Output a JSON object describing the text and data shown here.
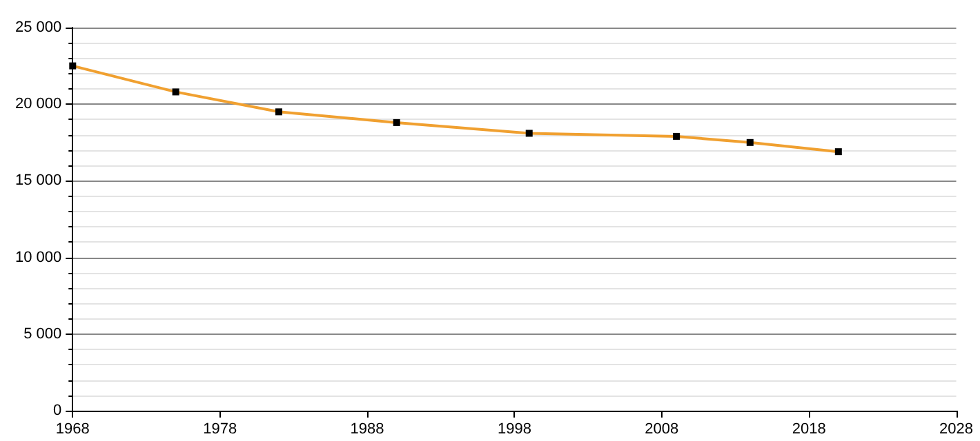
{
  "chart_data": {
    "type": "line",
    "x": [
      1968,
      1975,
      1982,
      1990,
      1999,
      2009,
      2014,
      2020
    ],
    "series": [
      {
        "color": "#f0a030",
        "values": [
          22500,
          20800,
          19500,
          18800,
          18100,
          17900,
          17500,
          16900
        ]
      }
    ],
    "xlim": [
      1968,
      2028
    ],
    "xticks": [
      1968,
      1978,
      1988,
      1998,
      2008,
      2018,
      2028
    ],
    "ylim": [
      0,
      25000
    ],
    "yticks": [
      0,
      {
        "value": 5000,
        "label": "5 000"
      },
      {
        "value": 10000,
        "label": "10 000"
      },
      {
        "value": 15000,
        "label": "15 000"
      },
      {
        "value": 20000,
        "label": "20 000"
      },
      {
        "value": 25000,
        "label": "25 000"
      }
    ],
    "grid": "y",
    "marker": "square",
    "line_style": "solid"
  }
}
